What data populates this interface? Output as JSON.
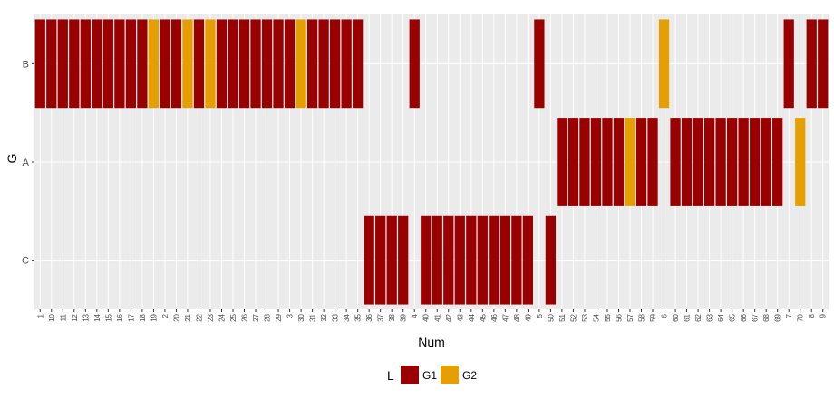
{
  "chart_data": {
    "type": "bar",
    "xlabel": "Num",
    "ylabel": "G",
    "categories": [
      "1",
      "10",
      "11",
      "12",
      "13",
      "14",
      "15",
      "16",
      "17",
      "18",
      "19",
      "2",
      "20",
      "21",
      "22",
      "23",
      "24",
      "25",
      "26",
      "27",
      "28",
      "29",
      "3",
      "30",
      "31",
      "32",
      "33",
      "34",
      "35",
      "36",
      "37",
      "38",
      "39",
      "4",
      "40",
      "41",
      "42",
      "43",
      "44",
      "45",
      "46",
      "47",
      "48",
      "49",
      "5",
      "50",
      "51",
      "52",
      "53",
      "54",
      "55",
      "56",
      "57",
      "58",
      "59",
      "6",
      "60",
      "61",
      "62",
      "63",
      "64",
      "65",
      "66",
      "67",
      "68",
      "69",
      "7",
      "70",
      "8",
      "9"
    ],
    "y_categories": [
      "B",
      "A",
      "C"
    ],
    "legend": {
      "title": "L",
      "position": "bottom",
      "entries": [
        {
          "label": "G1",
          "color": "#990000"
        },
        {
          "label": "G2",
          "color": "#E69F00"
        }
      ]
    },
    "grid": true,
    "series": [
      {
        "name": "G1",
        "color": "#990000",
        "values": [
          {
            "x": "1",
            "g": "B"
          },
          {
            "x": "10",
            "g": "B"
          },
          {
            "x": "11",
            "g": "B"
          },
          {
            "x": "12",
            "g": "B"
          },
          {
            "x": "13",
            "g": "B"
          },
          {
            "x": "14",
            "g": "B"
          },
          {
            "x": "15",
            "g": "B"
          },
          {
            "x": "16",
            "g": "B"
          },
          {
            "x": "17",
            "g": "B"
          },
          {
            "x": "18",
            "g": "B"
          },
          {
            "x": "2",
            "g": "B"
          },
          {
            "x": "20",
            "g": "B"
          },
          {
            "x": "22",
            "g": "B"
          },
          {
            "x": "24",
            "g": "B"
          },
          {
            "x": "25",
            "g": "B"
          },
          {
            "x": "26",
            "g": "B"
          },
          {
            "x": "27",
            "g": "B"
          },
          {
            "x": "28",
            "g": "B"
          },
          {
            "x": "29",
            "g": "B"
          },
          {
            "x": "3",
            "g": "B"
          },
          {
            "x": "31",
            "g": "B"
          },
          {
            "x": "32",
            "g": "B"
          },
          {
            "x": "33",
            "g": "B"
          },
          {
            "x": "34",
            "g": "B"
          },
          {
            "x": "35",
            "g": "B"
          },
          {
            "x": "4",
            "g": "B"
          },
          {
            "x": "5",
            "g": "B"
          },
          {
            "x": "7",
            "g": "B"
          },
          {
            "x": "8",
            "g": "B"
          },
          {
            "x": "9",
            "g": "B"
          },
          {
            "x": "51",
            "g": "A"
          },
          {
            "x": "52",
            "g": "A"
          },
          {
            "x": "53",
            "g": "A"
          },
          {
            "x": "54",
            "g": "A"
          },
          {
            "x": "55",
            "g": "A"
          },
          {
            "x": "56",
            "g": "A"
          },
          {
            "x": "58",
            "g": "A"
          },
          {
            "x": "59",
            "g": "A"
          },
          {
            "x": "60",
            "g": "A"
          },
          {
            "x": "61",
            "g": "A"
          },
          {
            "x": "62",
            "g": "A"
          },
          {
            "x": "63",
            "g": "A"
          },
          {
            "x": "64",
            "g": "A"
          },
          {
            "x": "65",
            "g": "A"
          },
          {
            "x": "66",
            "g": "A"
          },
          {
            "x": "67",
            "g": "A"
          },
          {
            "x": "68",
            "g": "A"
          },
          {
            "x": "69",
            "g": "A"
          },
          {
            "x": "36",
            "g": "C"
          },
          {
            "x": "37",
            "g": "C"
          },
          {
            "x": "38",
            "g": "C"
          },
          {
            "x": "39",
            "g": "C"
          },
          {
            "x": "40",
            "g": "C"
          },
          {
            "x": "41",
            "g": "C"
          },
          {
            "x": "42",
            "g": "C"
          },
          {
            "x": "43",
            "g": "C"
          },
          {
            "x": "44",
            "g": "C"
          },
          {
            "x": "45",
            "g": "C"
          },
          {
            "x": "46",
            "g": "C"
          },
          {
            "x": "47",
            "g": "C"
          },
          {
            "x": "48",
            "g": "C"
          },
          {
            "x": "49",
            "g": "C"
          },
          {
            "x": "50",
            "g": "C"
          }
        ]
      },
      {
        "name": "G2",
        "color": "#E69F00",
        "values": [
          {
            "x": "19",
            "g": "B"
          },
          {
            "x": "21",
            "g": "B"
          },
          {
            "x": "23",
            "g": "B"
          },
          {
            "x": "30",
            "g": "B"
          },
          {
            "x": "6",
            "g": "B"
          },
          {
            "x": "57",
            "g": "A"
          },
          {
            "x": "70",
            "g": "A"
          }
        ]
      }
    ]
  }
}
